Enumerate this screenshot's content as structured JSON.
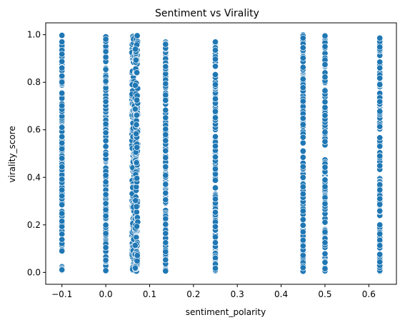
{
  "chart_data": {
    "type": "scatter",
    "title": "Sentiment vs Virality",
    "xlabel": "sentiment_polarity",
    "ylabel": "virality_score",
    "xlim": [
      -0.137,
      0.663
    ],
    "ylim": [
      -0.05,
      1.05
    ],
    "x_ticks": [
      -0.1,
      0.0,
      0.1,
      0.2,
      0.3,
      0.4,
      0.5,
      0.6
    ],
    "x_tick_labels": [
      "−0.1",
      "0.0",
      "0.1",
      "0.2",
      "0.3",
      "0.4",
      "0.5",
      "0.6"
    ],
    "y_ticks": [
      0.0,
      0.2,
      0.4,
      0.6,
      0.8,
      1.0
    ],
    "y_tick_labels": [
      "0.0",
      "0.2",
      "0.4",
      "0.6",
      "0.8",
      "1.0"
    ],
    "grid": false,
    "marker_color": "#1f77b4",
    "marker_edge_color": "#ffffff",
    "series": [
      {
        "points_note": "",
        "x_groups": [
          -0.1,
          0.0,
          0.0625,
          0.07,
          0.1364,
          0.25,
          0.45,
          0.5,
          0.625
        ],
        "y_range": [
          0.003,
          1.0
        ]
      }
    ]
  }
}
